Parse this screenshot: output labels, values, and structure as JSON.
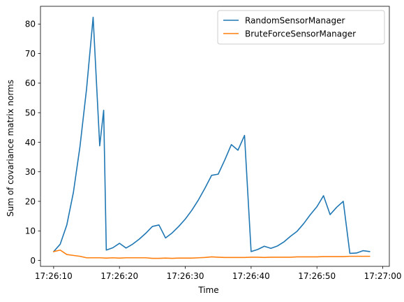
{
  "chart_data": {
    "type": "line",
    "title": "",
    "xlabel": "Time",
    "ylabel": "Sum of covariance matrix norms",
    "x_ticks": [
      "17:26:10",
      "17:26:20",
      "17:26:30",
      "17:26:40",
      "17:26:50",
      "17:27:00"
    ],
    "y_ticks": [
      "0",
      "10",
      "20",
      "30",
      "40",
      "50",
      "60",
      "70",
      "80"
    ],
    "xlim": [
      "17:26:08",
      "17:27:01"
    ],
    "ylim": [
      -2,
      86
    ],
    "legend_position": "top-right",
    "grid": false,
    "x": [
      "17:26:10",
      "17:26:11",
      "17:26:12",
      "17:26:13",
      "17:26:14",
      "17:26:15",
      "17:26:16",
      "17:26:17",
      "17:26:18",
      "17:26:19",
      "17:26:20",
      "17:26:21",
      "17:26:22",
      "17:26:23",
      "17:26:24",
      "17:26:25",
      "17:26:26",
      "17:26:27",
      "17:26:28",
      "17:26:29",
      "17:26:30",
      "17:26:31",
      "17:26:32",
      "17:26:33",
      "17:26:34",
      "17:26:35",
      "17:26:36",
      "17:26:37",
      "17:26:38",
      "17:26:39",
      "17:26:40",
      "17:26:41",
      "17:26:42",
      "17:26:43",
      "17:26:44",
      "17:26:45",
      "17:26:46",
      "17:26:47",
      "17:26:48",
      "17:26:49",
      "17:26:50",
      "17:26:51",
      "17:26:52",
      "17:26:53",
      "17:26:54",
      "17:26:55",
      "17:26:56",
      "17:26:57",
      "17:26:58",
      "17:26:59"
    ],
    "series": [
      {
        "name": "RandomSensorManager",
        "color": "#1f77b4",
        "points": [
          [
            "17:26:10",
            3.0
          ],
          [
            "17:26:11",
            5.5
          ],
          [
            "17:26:12",
            12.0
          ],
          [
            "17:26:13",
            23.0
          ],
          [
            "17:26:14",
            38.5
          ],
          [
            "17:26:15",
            58.0
          ],
          [
            "17:26:16",
            82.3
          ],
          [
            "17:26:17",
            38.8
          ],
          [
            "17:26:17.6",
            50.8
          ],
          [
            "17:26:18",
            3.5
          ],
          [
            "17:26:19",
            4.3
          ],
          [
            "17:26:20",
            5.8
          ],
          [
            "17:26:21",
            4.2
          ],
          [
            "17:26:22",
            5.5
          ],
          [
            "17:26:23",
            7.2
          ],
          [
            "17:26:24",
            9.2
          ],
          [
            "17:26:25",
            11.5
          ],
          [
            "17:26:26",
            12.0
          ],
          [
            "17:26:27",
            7.6
          ],
          [
            "17:26:28",
            9.3
          ],
          [
            "17:26:29",
            11.5
          ],
          [
            "17:26:30",
            14.0
          ],
          [
            "17:26:31",
            17.0
          ],
          [
            "17:26:32",
            20.5
          ],
          [
            "17:26:33",
            24.5
          ],
          [
            "17:26:34",
            28.8
          ],
          [
            "17:26:35",
            29.2
          ],
          [
            "17:26:36",
            34.0
          ],
          [
            "17:26:37",
            39.2
          ],
          [
            "17:26:38",
            37.3
          ],
          [
            "17:26:39",
            42.3
          ],
          [
            "17:26:40",
            3.0
          ],
          [
            "17:26:41",
            3.7
          ],
          [
            "17:26:42",
            4.8
          ],
          [
            "17:26:43",
            4.1
          ],
          [
            "17:26:44",
            4.9
          ],
          [
            "17:26:45",
            6.3
          ],
          [
            "17:26:46",
            8.2
          ],
          [
            "17:26:47",
            9.9
          ],
          [
            "17:26:48",
            12.5
          ],
          [
            "17:26:49",
            15.5
          ],
          [
            "17:26:50",
            18.2
          ],
          [
            "17:26:51",
            21.9
          ],
          [
            "17:26:52",
            15.5
          ],
          [
            "17:26:53",
            18.0
          ],
          [
            "17:26:54",
            20.0
          ],
          [
            "17:26:55",
            2.4
          ],
          [
            "17:26:56",
            2.5
          ],
          [
            "17:26:57",
            3.3
          ],
          [
            "17:26:58",
            3.0
          ]
        ]
      },
      {
        "name": "BruteForceSensorManager",
        "color": "#ff7f0e",
        "points": [
          [
            "17:26:10",
            3.0
          ],
          [
            "17:26:11",
            3.5
          ],
          [
            "17:26:12",
            2.0
          ],
          [
            "17:26:13",
            1.7
          ],
          [
            "17:26:14",
            1.4
          ],
          [
            "17:26:15",
            0.9
          ],
          [
            "17:26:16",
            0.9
          ],
          [
            "17:26:17",
            0.9
          ],
          [
            "17:26:18",
            0.8
          ],
          [
            "17:26:19",
            0.9
          ],
          [
            "17:26:20",
            0.8
          ],
          [
            "17:26:21",
            0.9
          ],
          [
            "17:26:22",
            0.9
          ],
          [
            "17:26:23",
            0.9
          ],
          [
            "17:26:24",
            0.9
          ],
          [
            "17:26:25",
            0.7
          ],
          [
            "17:26:26",
            0.7
          ],
          [
            "17:26:27",
            0.8
          ],
          [
            "17:26:28",
            0.7
          ],
          [
            "17:26:29",
            0.8
          ],
          [
            "17:26:30",
            0.8
          ],
          [
            "17:26:31",
            0.8
          ],
          [
            "17:26:32",
            0.9
          ],
          [
            "17:26:33",
            1.0
          ],
          [
            "17:26:34",
            1.2
          ],
          [
            "17:26:35",
            1.1
          ],
          [
            "17:26:36",
            1.0
          ],
          [
            "17:26:37",
            1.0
          ],
          [
            "17:26:38",
            1.0
          ],
          [
            "17:26:39",
            1.0
          ],
          [
            "17:26:40",
            1.1
          ],
          [
            "17:26:41",
            1.1
          ],
          [
            "17:26:42",
            1.0
          ],
          [
            "17:26:43",
            1.1
          ],
          [
            "17:26:44",
            1.1
          ],
          [
            "17:26:45",
            1.1
          ],
          [
            "17:26:46",
            1.1
          ],
          [
            "17:26:47",
            1.2
          ],
          [
            "17:26:48",
            1.2
          ],
          [
            "17:26:49",
            1.2
          ],
          [
            "17:26:50",
            1.2
          ],
          [
            "17:26:51",
            1.3
          ],
          [
            "17:26:52",
            1.3
          ],
          [
            "17:26:53",
            1.3
          ],
          [
            "17:26:54",
            1.3
          ],
          [
            "17:26:55",
            1.4
          ],
          [
            "17:26:56",
            1.4
          ],
          [
            "17:26:57",
            1.4
          ],
          [
            "17:26:58",
            1.4
          ]
        ]
      }
    ]
  }
}
